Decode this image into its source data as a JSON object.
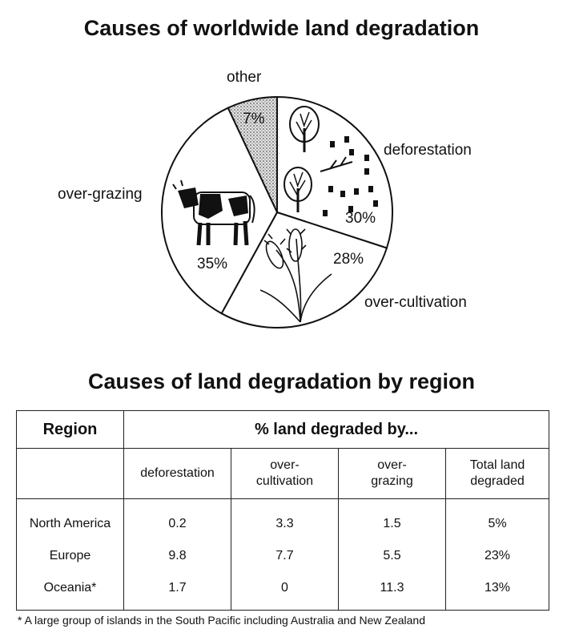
{
  "chart_data": [
    {
      "type": "pie",
      "title": "Causes of worldwide land degradation",
      "slices": [
        {
          "label": "other",
          "value": 7,
          "display": "7%"
        },
        {
          "label": "deforestation",
          "value": 30,
          "display": "30%"
        },
        {
          "label": "over-cultivation",
          "value": 28,
          "display": "28%"
        },
        {
          "label": "over-grazing",
          "value": 35,
          "display": "35%"
        }
      ],
      "icons": [
        "tree-icon",
        "stump-icon",
        "wheat-icon",
        "cow-icon"
      ]
    },
    {
      "type": "table",
      "title": "Causes of land degradation by region",
      "header": {
        "region": "Region",
        "group": "% land degraded by...",
        "columns": [
          "deforestation",
          "over-\ncultivation",
          "over-\ngrazing",
          "Total land\ndegraded"
        ]
      },
      "rows": [
        {
          "region": "North America",
          "values": [
            "0.2",
            "3.3",
            "1.5",
            "5%"
          ]
        },
        {
          "region": "Europe",
          "values": [
            "9.8",
            "7.7",
            "5.5",
            "23%"
          ]
        },
        {
          "region": "Oceania*",
          "values": [
            "1.7",
            "0",
            "11.3",
            "13%"
          ]
        }
      ],
      "footnote": "* A large group of islands in the South Pacific including Australia and New Zealand"
    }
  ]
}
